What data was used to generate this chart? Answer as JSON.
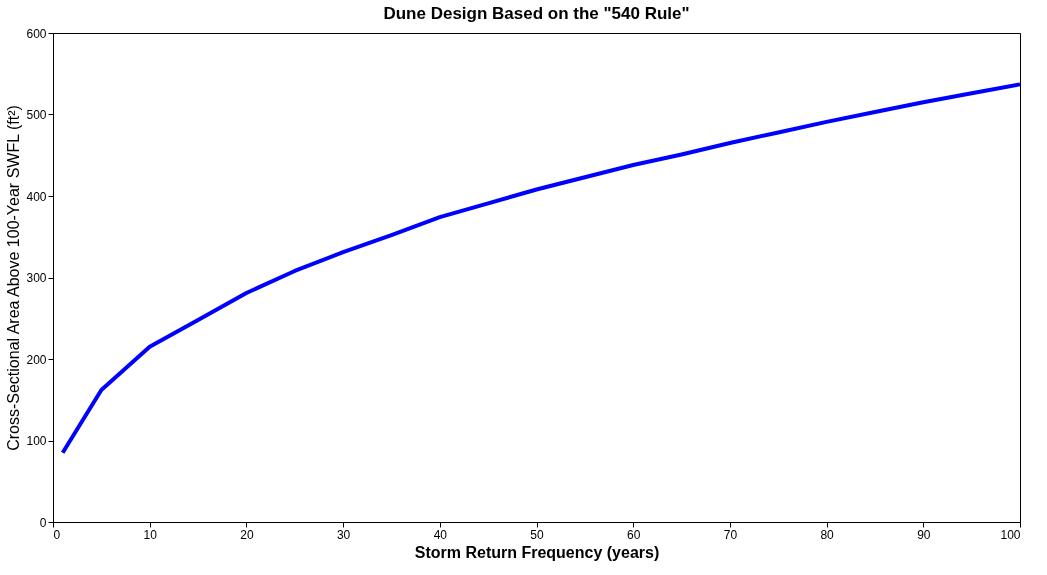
{
  "chart_data": {
    "type": "line",
    "title": "Dune Design Based on the \"540 Rule\"",
    "xlabel": "Storm Return Frequency (years)",
    "ylabel": "Cross-Sectional Area Above 100-Year SWFL (ft²)",
    "x": [
      1,
      5,
      10,
      15,
      20,
      25,
      30,
      35,
      40,
      45,
      50,
      55,
      60,
      65,
      70,
      75,
      80,
      85,
      90,
      95,
      100
    ],
    "series": [
      {
        "color": "#0000ff",
        "values": [
          85,
          162,
          215,
          248,
          281,
          308,
          331,
          352,
          374,
          391,
          408,
          423,
          438,
          451,
          465,
          478,
          491,
          503,
          515,
          526,
          537
        ]
      }
    ],
    "xlim": [
      0,
      100
    ],
    "xticks": [
      0,
      10,
      20,
      30,
      40,
      50,
      60,
      70,
      80,
      90,
      100
    ],
    "ylim": [
      0,
      600
    ],
    "yticks": [
      0,
      100,
      200,
      300,
      400,
      500,
      600
    ],
    "grid": false,
    "legend": false,
    "marker": "none",
    "line_style": "solid"
  }
}
